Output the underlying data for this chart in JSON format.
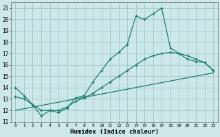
{
  "xlabel": "Humidex (Indice chaleur)",
  "background_color": "#cce8e8",
  "grid_color": "#aacccc",
  "line_color": "#1a7a6e",
  "xlim": [
    -0.5,
    23.5
  ],
  "ylim": [
    11,
    21.5
  ],
  "xticks": [
    0,
    1,
    2,
    3,
    4,
    5,
    6,
    7,
    8,
    9,
    10,
    11,
    12,
    13,
    14,
    15,
    16,
    17,
    18,
    19,
    20,
    21,
    22,
    23
  ],
  "yticks": [
    11,
    12,
    13,
    14,
    15,
    16,
    17,
    18,
    19,
    20,
    21
  ],
  "curve1_x": [
    0,
    1,
    2,
    3,
    4,
    5,
    6,
    7,
    8,
    9,
    10,
    11,
    12,
    13,
    14,
    15,
    16,
    17,
    18,
    19,
    20,
    21,
    22,
    23
  ],
  "curve1_y": [
    14.0,
    13.3,
    12.5,
    11.5,
    12.0,
    11.8,
    12.2,
    13.1,
    13.3,
    14.5,
    15.5,
    16.5,
    17.1,
    17.8,
    20.3,
    20.0,
    20.5,
    21.0,
    17.5,
    17.0,
    16.5,
    16.3,
    16.2,
    15.5
  ],
  "curve2_x": [
    0,
    1,
    2,
    3,
    4,
    5,
    6,
    7,
    8,
    9,
    10,
    11,
    12,
    13,
    14,
    15,
    16,
    17,
    18,
    19,
    20,
    21,
    22,
    23
  ],
  "curve2_y": [
    13.2,
    13.0,
    12.5,
    12.0,
    12.0,
    12.0,
    12.3,
    12.8,
    13.1,
    13.5,
    14.0,
    14.5,
    15.0,
    15.5,
    16.0,
    16.5,
    16.8,
    17.0,
    17.1,
    17.0,
    16.8,
    16.5,
    16.2,
    15.5
  ],
  "curve3_x": [
    0,
    23
  ],
  "curve3_y": [
    12.0,
    15.3
  ]
}
